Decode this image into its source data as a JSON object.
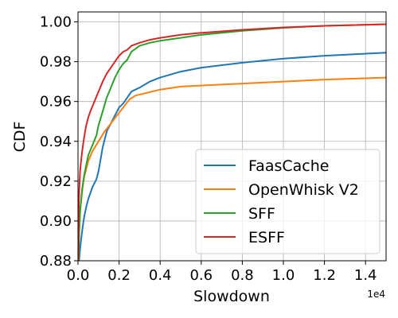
{
  "chart_data": {
    "type": "line",
    "title": "",
    "xlabel": "Slowdown",
    "ylabel": "CDF",
    "x_offset_label": "1e4",
    "xlim": [
      0,
      15000
    ],
    "ylim": [
      0.88,
      1.005
    ],
    "xticks": [
      0,
      2000,
      4000,
      6000,
      8000,
      10000,
      12000,
      14000
    ],
    "xtick_labels": [
      "0.0",
      "0.2",
      "0.4",
      "0.6",
      "0.8",
      "1.0",
      "1.2",
      "1.4"
    ],
    "yticks": [
      0.88,
      0.9,
      0.92,
      0.94,
      0.96,
      0.98,
      1.0
    ],
    "ytick_labels": [
      "0.88",
      "0.90",
      "0.92",
      "0.94",
      "0.96",
      "0.98",
      "1.00"
    ],
    "grid": true,
    "legend_position": "lower-right",
    "series": [
      {
        "name": "FaasCache",
        "color": "#1f77b4",
        "x": [
          50,
          100,
          200,
          300,
          400,
          500,
          700,
          900,
          1000,
          1200,
          1400,
          1600,
          1800,
          2000,
          2200,
          2400,
          2600,
          3000,
          3500,
          4000,
          5000,
          6000,
          8000,
          10000,
          12000,
          15000
        ],
        "y": [
          0.88,
          0.886,
          0.895,
          0.902,
          0.907,
          0.911,
          0.917,
          0.921,
          0.925,
          0.937,
          0.945,
          0.949,
          0.953,
          0.957,
          0.959,
          0.962,
          0.965,
          0.967,
          0.97,
          0.972,
          0.975,
          0.977,
          0.9795,
          0.9815,
          0.983,
          0.9845
        ]
      },
      {
        "name": "OpenWhisk V2",
        "color": "#ff7f0e",
        "x": [
          20,
          50,
          100,
          200,
          300,
          500,
          700,
          1000,
          1300,
          1600,
          1900,
          2200,
          2500,
          2800,
          3200,
          4000,
          5000,
          6000,
          8000,
          10000,
          12000,
          15000
        ],
        "y": [
          0.88,
          0.893,
          0.904,
          0.915,
          0.922,
          0.93,
          0.935,
          0.94,
          0.945,
          0.949,
          0.953,
          0.957,
          0.961,
          0.963,
          0.964,
          0.966,
          0.9675,
          0.968,
          0.969,
          0.97,
          0.971,
          0.972
        ]
      },
      {
        "name": "SFF",
        "color": "#2ca02c",
        "x": [
          30,
          60,
          100,
          200,
          300,
          500,
          700,
          900,
          1000,
          1200,
          1400,
          1600,
          1800,
          2000,
          2200,
          2400,
          2600,
          3000,
          3500,
          4000,
          5000,
          6000,
          8000,
          10000,
          12000,
          15000
        ],
        "y": [
          0.88,
          0.895,
          0.905,
          0.916,
          0.923,
          0.933,
          0.938,
          0.943,
          0.948,
          0.955,
          0.962,
          0.967,
          0.972,
          0.976,
          0.979,
          0.981,
          0.985,
          0.988,
          0.9895,
          0.9905,
          0.992,
          0.9935,
          0.9955,
          0.997,
          0.998,
          0.9988
        ]
      },
      {
        "name": "ESFF",
        "color": "#d62728",
        "x": [
          10,
          30,
          60,
          100,
          150,
          200,
          300,
          400,
          500,
          600,
          800,
          1000,
          1200,
          1400,
          1600,
          1800,
          2000,
          2200,
          2400,
          2600,
          3000,
          3500,
          4000,
          5000,
          6000,
          8000,
          10000,
          12000,
          15000
        ],
        "y": [
          0.88,
          0.905,
          0.915,
          0.925,
          0.93,
          0.935,
          0.942,
          0.948,
          0.952,
          0.955,
          0.96,
          0.965,
          0.97,
          0.974,
          0.977,
          0.98,
          0.983,
          0.985,
          0.986,
          0.988,
          0.9895,
          0.991,
          0.992,
          0.9935,
          0.9945,
          0.996,
          0.9972,
          0.998,
          0.9988
        ]
      }
    ]
  }
}
